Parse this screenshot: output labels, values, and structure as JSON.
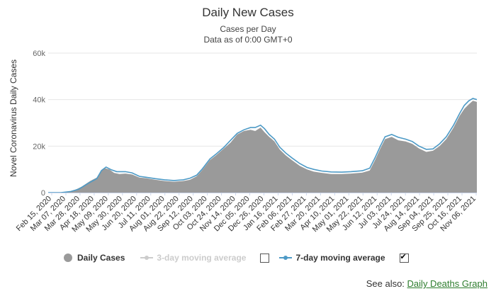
{
  "header": {
    "title": "Daily New Cases",
    "subtitle": "Cases per Day",
    "data_note": "Data as of 0:00 GMT+0"
  },
  "legend": {
    "daily_cases": "Daily Cases",
    "three_day": "3-day moving average",
    "seven_day": "7-day moving average",
    "three_day_checked": false,
    "seven_day_checked": true
  },
  "footer": {
    "see_also_label": "See also:",
    "link_text": "Daily Deaths Graph"
  },
  "chart_data": {
    "type": "area",
    "title": "Daily New Cases",
    "ylabel": "Novel Coronavirus Daily Cases",
    "xlabel": "",
    "ylim": [
      0,
      60000
    ],
    "y_ticks": [
      0,
      20000,
      40000,
      60000
    ],
    "y_tick_labels": [
      "0",
      "20k",
      "40k",
      "60k"
    ],
    "x_tick_labels": [
      "Feb 15, 2020",
      "Mar 07, 2020",
      "Mar 28, 2020",
      "Apr 18, 2020",
      "May 09, 2020",
      "May 30, 2020",
      "Jun 20, 2020",
      "Jul 11, 2020",
      "Aug 01, 2020",
      "Aug 22, 2020",
      "Sep 12, 2020",
      "Oct 03, 2020",
      "Oct 24, 2020",
      "Nov 14, 2020",
      "Dec 05, 2020",
      "Dec 26, 2020",
      "Jan 16, 2021",
      "Feb 06, 2021",
      "Feb 27, 2021",
      "Mar 20, 2021",
      "Apr 10, 2021",
      "May 01, 2021",
      "May 22, 2021",
      "Jun 12, 2021",
      "Jul 03, 2021",
      "Jul 24, 2021",
      "Aug 14, 2021",
      "Sep 04, 2021",
      "Sep 25, 2021",
      "Oct 16, 2021",
      "Nov 06, 2021"
    ],
    "x_start": "2020-02-15",
    "x_end": "2021-11-20",
    "colors": {
      "area": "#9a9a9a",
      "ma7": "#4d9ac6",
      "ma3": "#cccccc"
    },
    "series": [
      {
        "name": "Daily Cases",
        "kind": "area",
        "points": [
          [
            "2020-02-15",
            0
          ],
          [
            "2020-03-01",
            0
          ],
          [
            "2020-03-15",
            300
          ],
          [
            "2020-03-25",
            1000
          ],
          [
            "2020-04-05",
            2500
          ],
          [
            "2020-04-18",
            5000
          ],
          [
            "2020-04-28",
            6500
          ],
          [
            "2020-05-05",
            9500
          ],
          [
            "2020-05-10",
            10500
          ],
          [
            "2020-05-17",
            10000
          ],
          [
            "2020-05-24",
            8500
          ],
          [
            "2020-06-01",
            8000
          ],
          [
            "2020-06-10",
            8200
          ],
          [
            "2020-06-20",
            7800
          ],
          [
            "2020-07-01",
            6500
          ],
          [
            "2020-07-11",
            6200
          ],
          [
            "2020-07-25",
            5500
          ],
          [
            "2020-08-08",
            5000
          ],
          [
            "2020-08-22",
            4700
          ],
          [
            "2020-09-05",
            5000
          ],
          [
            "2020-09-15",
            5500
          ],
          [
            "2020-09-25",
            7000
          ],
          [
            "2020-10-03",
            9500
          ],
          [
            "2020-10-15",
            14000
          ],
          [
            "2020-10-24",
            16000
          ],
          [
            "2020-11-05",
            19000
          ],
          [
            "2020-11-15",
            21500
          ],
          [
            "2020-11-25",
            25000
          ],
          [
            "2020-12-05",
            26500
          ],
          [
            "2020-12-15",
            27000
          ],
          [
            "2020-12-22",
            26500
          ],
          [
            "2020-12-30",
            28000
          ],
          [
            "2021-01-05",
            26000
          ],
          [
            "2021-01-12",
            24000
          ],
          [
            "2021-01-20",
            22000
          ],
          [
            "2021-01-28",
            18500
          ],
          [
            "2021-02-06",
            16000
          ],
          [
            "2021-02-15",
            14000
          ],
          [
            "2021-02-27",
            11500
          ],
          [
            "2021-03-10",
            10000
          ],
          [
            "2021-03-20",
            9000
          ],
          [
            "2021-04-01",
            8500
          ],
          [
            "2021-04-15",
            8000
          ],
          [
            "2021-05-01",
            8000
          ],
          [
            "2021-05-15",
            8200
          ],
          [
            "2021-06-01",
            8600
          ],
          [
            "2021-06-12",
            9500
          ],
          [
            "2021-06-20",
            14000
          ],
          [
            "2021-06-28",
            19000
          ],
          [
            "2021-07-05",
            23000
          ],
          [
            "2021-07-15",
            24000
          ],
          [
            "2021-07-25",
            22500
          ],
          [
            "2021-08-05",
            22000
          ],
          [
            "2021-08-15",
            21000
          ],
          [
            "2021-08-25",
            19000
          ],
          [
            "2021-09-05",
            17500
          ],
          [
            "2021-09-15",
            18000
          ],
          [
            "2021-09-25",
            20000
          ],
          [
            "2021-10-05",
            23000
          ],
          [
            "2021-10-16",
            28000
          ],
          [
            "2021-10-25",
            33000
          ],
          [
            "2021-11-01",
            36000
          ],
          [
            "2021-11-08",
            38000
          ],
          [
            "2021-11-14",
            39500
          ],
          [
            "2021-11-20",
            39000
          ]
        ]
      },
      {
        "name": "7-day moving average",
        "kind": "line",
        "points": [
          [
            "2020-02-15",
            0
          ],
          [
            "2020-03-05",
            0
          ],
          [
            "2020-03-20",
            500
          ],
          [
            "2020-04-01",
            1500
          ],
          [
            "2020-04-15",
            4000
          ],
          [
            "2020-04-28",
            6000
          ],
          [
            "2020-05-05",
            9500
          ],
          [
            "2020-05-12",
            11000
          ],
          [
            "2020-05-20",
            9800
          ],
          [
            "2020-05-28",
            9000
          ],
          [
            "2020-06-10",
            9000
          ],
          [
            "2020-06-20",
            8500
          ],
          [
            "2020-07-01",
            7000
          ],
          [
            "2020-07-11",
            6600
          ],
          [
            "2020-07-25",
            6000
          ],
          [
            "2020-08-08",
            5500
          ],
          [
            "2020-08-22",
            5200
          ],
          [
            "2020-09-05",
            5500
          ],
          [
            "2020-09-15",
            6200
          ],
          [
            "2020-09-25",
            7500
          ],
          [
            "2020-10-03",
            10000
          ],
          [
            "2020-10-15",
            14500
          ],
          [
            "2020-10-24",
            16500
          ],
          [
            "2020-11-05",
            19500
          ],
          [
            "2020-11-15",
            22500
          ],
          [
            "2020-11-25",
            25500
          ],
          [
            "2020-12-05",
            27000
          ],
          [
            "2020-12-15",
            28000
          ],
          [
            "2020-12-22",
            28000
          ],
          [
            "2020-12-30",
            29000
          ],
          [
            "2021-01-05",
            27500
          ],
          [
            "2021-01-12",
            25000
          ],
          [
            "2021-01-20",
            23000
          ],
          [
            "2021-01-28",
            19500
          ],
          [
            "2021-02-06",
            17000
          ],
          [
            "2021-02-15",
            15000
          ],
          [
            "2021-02-27",
            12500
          ],
          [
            "2021-03-10",
            10800
          ],
          [
            "2021-03-20",
            10000
          ],
          [
            "2021-04-01",
            9300
          ],
          [
            "2021-04-15",
            8900
          ],
          [
            "2021-05-01",
            8800
          ],
          [
            "2021-05-15",
            9000
          ],
          [
            "2021-06-01",
            9400
          ],
          [
            "2021-06-12",
            10500
          ],
          [
            "2021-06-20",
            15000
          ],
          [
            "2021-06-28",
            20000
          ],
          [
            "2021-07-05",
            24000
          ],
          [
            "2021-07-15",
            25000
          ],
          [
            "2021-07-25",
            23800
          ],
          [
            "2021-08-05",
            23000
          ],
          [
            "2021-08-15",
            22000
          ],
          [
            "2021-08-25",
            20000
          ],
          [
            "2021-09-05",
            18600
          ],
          [
            "2021-09-15",
            18800
          ],
          [
            "2021-09-25",
            21000
          ],
          [
            "2021-10-05",
            24000
          ],
          [
            "2021-10-16",
            29000
          ],
          [
            "2021-10-25",
            34000
          ],
          [
            "2021-11-01",
            37500
          ],
          [
            "2021-11-08",
            39500
          ],
          [
            "2021-11-14",
            40500
          ],
          [
            "2021-11-20",
            40000
          ]
        ]
      }
    ]
  }
}
